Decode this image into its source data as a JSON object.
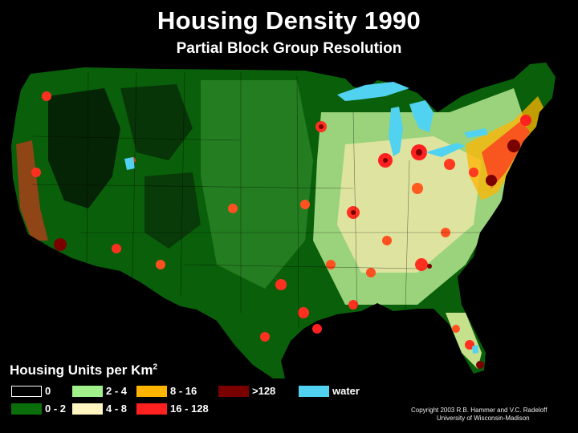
{
  "title": "Housing Density 1990",
  "subtitle": "Partial Block Group Resolution",
  "legend": {
    "title_main": "Housing Units per Km",
    "title_sup": "2",
    "items": [
      {
        "label": "0",
        "color": "#000000"
      },
      {
        "label": "0 - 2",
        "color": "#0a6e0a"
      },
      {
        "label": "2 - 4",
        "color": "#a0f08c"
      },
      {
        "label": "4 - 8",
        "color": "#fff5c0"
      },
      {
        "label": "8 - 16",
        "color": "#ffb400"
      },
      {
        "label": "16 - 128",
        "color": "#ff2020"
      },
      {
        "label": ">128",
        "color": "#7a0000"
      },
      {
        "label": "water",
        "color": "#50d2f0"
      }
    ]
  },
  "credit": {
    "line1": "Copyright 2003 R.B. Hammer and V.C. Radeloff",
    "line2": "University of Wisconsin-Madison"
  }
}
